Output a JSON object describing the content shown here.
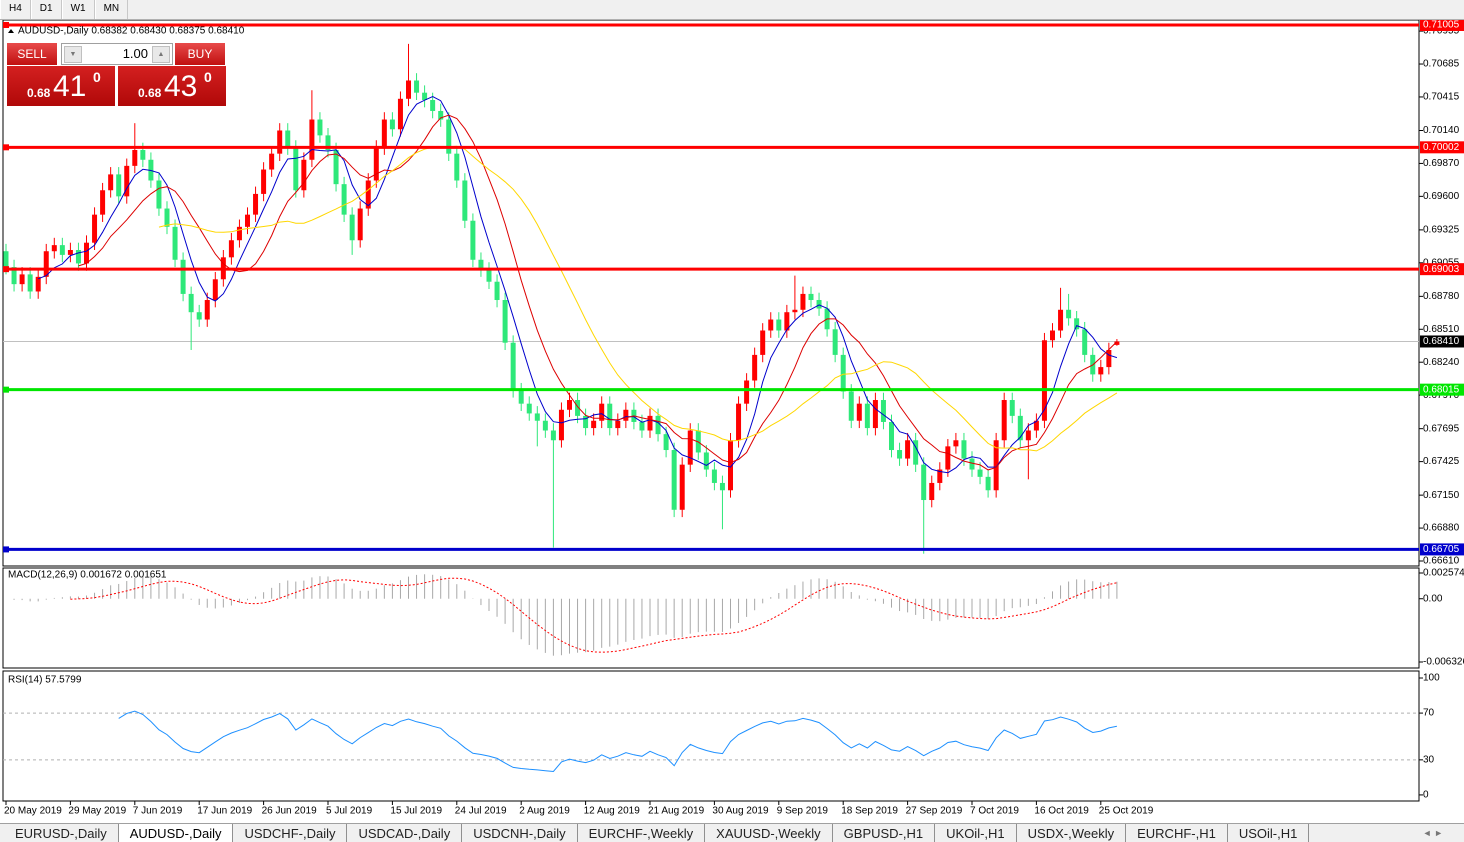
{
  "toolbar": {
    "timeframes": [
      "H4",
      "D1",
      "W1",
      "MN"
    ]
  },
  "trade_panel": {
    "sell_label": "SELL",
    "buy_label": "BUY",
    "lot": "1.00",
    "sell_price": [
      "0.68",
      "41",
      "0"
    ],
    "buy_price": [
      "0.68",
      "43",
      "0"
    ]
  },
  "chart_data": {
    "type": "candlestick",
    "title": "AUDUSD-,Daily  0.68382 0.68430 0.68375 0.68410",
    "categories": [
      "20 May 2019",
      null,
      null,
      null,
      null,
      null,
      null,
      null,
      "29 May 2019",
      null,
      null,
      null,
      null,
      null,
      null,
      null,
      "7 Jun 2019",
      null,
      null,
      null,
      null,
      null,
      null,
      null,
      "17 Jun 2019",
      null,
      null,
      null,
      null,
      null,
      null,
      null,
      "26 Jun 2019",
      null,
      null,
      null,
      null,
      null,
      null,
      null,
      "5 Jul 2019",
      null,
      null,
      null,
      null,
      null,
      null,
      null,
      "15 Jul 2019",
      null,
      null,
      null,
      null,
      null,
      null,
      null,
      "24 Jul 2019",
      null,
      null,
      null,
      null,
      null,
      null,
      null,
      "2 Aug 2019",
      null,
      null,
      null,
      null,
      null,
      null,
      null,
      "12 Aug 2019",
      null,
      null,
      null,
      null,
      null,
      null,
      null,
      "21 Aug 2019",
      null,
      null,
      null,
      null,
      null,
      null,
      null,
      "30 Aug 2019",
      null,
      null,
      null,
      null,
      null,
      null,
      null,
      "9 Sep 2019",
      null,
      null,
      null,
      null,
      null,
      null,
      null,
      "18 Sep 2019",
      null,
      null,
      null,
      null,
      null,
      null,
      null,
      "27 Sep 2019",
      null,
      null,
      null,
      null,
      null,
      null,
      null,
      "7 Oct 2019",
      null,
      null,
      null,
      null,
      null,
      null,
      null,
      "16 Oct 2019",
      null,
      null,
      null,
      null,
      null,
      null,
      null,
      "25 Oct 2019",
      null,
      null
    ],
    "open": [
      0.6915,
      0.6902,
      0.6888,
      0.6896,
      0.6882,
      0.6894,
      0.6915,
      0.692,
      0.6912,
      0.6916,
      0.6905,
      0.6922,
      0.6945,
      0.6965,
      0.6978,
      0.696,
      0.6985,
      0.6998,
      0.699,
      0.6973,
      0.695,
      0.6935,
      0.6908,
      0.688,
      0.6865,
      0.6859,
      0.6875,
      0.6892,
      0.691,
      0.6924,
      0.6935,
      0.6945,
      0.6962,
      0.6982,
      0.6995,
      0.7014,
      0.7,
      0.6965,
      0.699,
      0.7023,
      0.701,
      0.6998,
      0.697,
      0.6945,
      0.6924,
      0.695,
      0.6973,
      0.7,
      0.7023,
      0.7015,
      0.704,
      0.7055,
      0.7045,
      0.7039,
      0.703,
      0.7023,
      0.6995,
      0.6973,
      0.694,
      0.6908,
      0.69,
      0.689,
      0.6875,
      0.684,
      0.6801,
      0.679,
      0.6782,
      0.6776,
      0.6768,
      0.676,
      0.6785,
      0.6793,
      0.678,
      0.677,
      0.6776,
      0.679,
      0.677,
      0.6776,
      0.6785,
      0.6775,
      0.6768,
      0.678,
      0.6765,
      0.6752,
      0.6703,
      0.674,
      0.6768,
      0.675,
      0.6736,
      0.6725,
      0.6719,
      0.676,
      0.679,
      0.6809,
      0.683,
      0.685,
      0.6859,
      0.685,
      0.6865,
      0.6867,
      0.688,
      0.6875,
      0.6868,
      0.6851,
      0.683,
      0.68,
      0.6776,
      0.679,
      0.677,
      0.6793,
      0.6775,
      0.6752,
      0.6745,
      0.676,
      0.674,
      0.6711,
      0.6725,
      0.6736,
      0.6755,
      0.676,
      0.6745,
      0.6736,
      0.673,
      0.6719,
      0.676,
      0.6793,
      0.678,
      0.676,
      0.6768,
      0.6776,
      0.6842,
      0.685,
      0.6867,
      0.686,
      0.6851,
      0.683,
      0.6814,
      0.682,
      0.68382
    ],
    "high": [
      0.6921,
      0.6908,
      0.6902,
      0.6902,
      0.69,
      0.6921,
      0.6926,
      0.6926,
      0.6922,
      0.6922,
      0.6928,
      0.6951,
      0.6971,
      0.6984,
      0.6984,
      0.6991,
      0.702,
      0.7004,
      0.6996,
      0.6979,
      0.6956,
      0.6941,
      0.6914,
      0.6886,
      0.6871,
      0.6881,
      0.6898,
      0.6916,
      0.693,
      0.6941,
      0.6951,
      0.6968,
      0.6988,
      0.7001,
      0.702,
      0.702,
      0.7006,
      0.6996,
      0.7047,
      0.7029,
      0.7016,
      0.7004,
      0.6976,
      0.6951,
      0.6956,
      0.6979,
      0.7006,
      0.7029,
      0.7029,
      0.7046,
      0.7085,
      0.7061,
      0.7051,
      0.7045,
      0.7036,
      0.7029,
      0.7001,
      0.6979,
      0.6946,
      0.6914,
      0.6906,
      0.6896,
      0.6881,
      0.6846,
      0.6807,
      0.6796,
      0.6788,
      0.6782,
      0.6774,
      0.6791,
      0.6799,
      0.6799,
      0.6786,
      0.6782,
      0.6796,
      0.6796,
      0.6782,
      0.6791,
      0.6791,
      0.6781,
      0.6786,
      0.6786,
      0.6771,
      0.6758,
      0.6746,
      0.6774,
      0.6774,
      0.6756,
      0.6742,
      0.6731,
      0.6766,
      0.6796,
      0.6815,
      0.6836,
      0.6856,
      0.6865,
      0.6865,
      0.6871,
      0.6895,
      0.6886,
      0.6886,
      0.6881,
      0.6874,
      0.6857,
      0.6836,
      0.6806,
      0.6796,
      0.6796,
      0.6799,
      0.6799,
      0.6781,
      0.6758,
      0.6766,
      0.6766,
      0.6746,
      0.6731,
      0.6742,
      0.6761,
      0.6766,
      0.6766,
      0.6751,
      0.6742,
      0.6736,
      0.6766,
      0.6799,
      0.6799,
      0.6786,
      0.6774,
      0.6782,
      0.6848,
      0.6856,
      0.6885,
      0.688,
      0.6866,
      0.6857,
      0.6836,
      0.6826,
      0.684,
      0.6843
    ],
    "low": [
      0.6896,
      0.6882,
      0.6882,
      0.6876,
      0.6876,
      0.6888,
      0.6909,
      0.6906,
      0.6906,
      0.6899,
      0.6899,
      0.6916,
      0.6939,
      0.6959,
      0.6954,
      0.6954,
      0.6979,
      0.6984,
      0.6967,
      0.6944,
      0.6929,
      0.6902,
      0.6874,
      0.6834,
      0.6853,
      0.6853,
      0.6869,
      0.6886,
      0.6904,
      0.6918,
      0.6929,
      0.6939,
      0.6956,
      0.6976,
      0.6989,
      0.6994,
      0.6959,
      0.6959,
      0.6984,
      0.7004,
      0.6992,
      0.6964,
      0.6939,
      0.6912,
      0.6918,
      0.6944,
      0.6967,
      0.6994,
      0.7009,
      0.7009,
      0.7034,
      0.7039,
      0.7033,
      0.7024,
      0.7017,
      0.6989,
      0.6967,
      0.6934,
      0.6902,
      0.6894,
      0.6884,
      0.6869,
      0.6834,
      0.6795,
      0.6784,
      0.6776,
      0.6755,
      0.6762,
      0.6672,
      0.6754,
      0.6779,
      0.6774,
      0.6764,
      0.6764,
      0.677,
      0.6764,
      0.6764,
      0.677,
      0.6769,
      0.6762,
      0.6762,
      0.6759,
      0.6746,
      0.6697,
      0.6697,
      0.6734,
      0.6744,
      0.673,
      0.6719,
      0.6687,
      0.6713,
      0.6754,
      0.6784,
      0.6803,
      0.6824,
      0.6844,
      0.6844,
      0.6844,
      0.6859,
      0.6861,
      0.6869,
      0.6862,
      0.6845,
      0.6824,
      0.6794,
      0.677,
      0.677,
      0.6764,
      0.6764,
      0.6769,
      0.6746,
      0.6739,
      0.6739,
      0.6734,
      0.6667,
      0.6705,
      0.6719,
      0.673,
      0.6749,
      0.6739,
      0.673,
      0.6724,
      0.6713,
      0.6713,
      0.6754,
      0.6774,
      0.6754,
      0.6728,
      0.6762,
      0.677,
      0.6836,
      0.6844,
      0.6854,
      0.6845,
      0.6824,
      0.6808,
      0.6808,
      0.6814,
      0.68375
    ],
    "close": [
      0.6902,
      0.6888,
      0.6896,
      0.6882,
      0.6894,
      0.6915,
      0.692,
      0.6912,
      0.6916,
      0.6905,
      0.6922,
      0.6945,
      0.6965,
      0.6978,
      0.696,
      0.6985,
      0.6998,
      0.699,
      0.6973,
      0.695,
      0.6935,
      0.6908,
      0.688,
      0.6865,
      0.6859,
      0.6875,
      0.6892,
      0.691,
      0.6924,
      0.6935,
      0.6945,
      0.6962,
      0.6982,
      0.6995,
      0.7014,
      0.7,
      0.6965,
      0.699,
      0.7023,
      0.701,
      0.6998,
      0.697,
      0.6945,
      0.6924,
      0.695,
      0.6973,
      0.7,
      0.7023,
      0.7015,
      0.704,
      0.7055,
      0.7045,
      0.7039,
      0.703,
      0.7023,
      0.6995,
      0.6973,
      0.694,
      0.6908,
      0.69,
      0.689,
      0.6875,
      0.684,
      0.6801,
      0.679,
      0.6782,
      0.6776,
      0.6768,
      0.676,
      0.6785,
      0.6793,
      0.678,
      0.677,
      0.6776,
      0.679,
      0.677,
      0.6776,
      0.6785,
      0.6775,
      0.6768,
      0.678,
      0.6765,
      0.6752,
      0.6703,
      0.674,
      0.6768,
      0.675,
      0.6736,
      0.6725,
      0.6719,
      0.676,
      0.679,
      0.6809,
      0.683,
      0.685,
      0.6859,
      0.685,
      0.6865,
      0.6867,
      0.688,
      0.6875,
      0.6868,
      0.6851,
      0.683,
      0.68,
      0.6776,
      0.679,
      0.677,
      0.6793,
      0.6775,
      0.6752,
      0.6745,
      0.676,
      0.674,
      0.6711,
      0.6725,
      0.6736,
      0.6755,
      0.676,
      0.6745,
      0.6736,
      0.673,
      0.6719,
      0.676,
      0.6793,
      0.678,
      0.676,
      0.6768,
      0.6776,
      0.6842,
      0.685,
      0.6867,
      0.686,
      0.6851,
      0.683,
      0.6814,
      0.682,
      0.6834,
      0.6841
    ],
    "up_color": "#ff0000",
    "down_color": "#2ee87a",
    "ma_colors": [
      "#0000cc",
      "#dd0000",
      "#ffd700"
    ],
    "ylim": [
      0.66569,
      0.71046
    ],
    "yticks": [
      0.70955,
      0.70685,
      0.70415,
      {
        "value": 0.7014,
        "label": "0.70140"
      },
      {
        "value": 0.6987,
        "label": "0.69870"
      },
      {
        "value": 0.696,
        "label": "0.69600"
      },
      0.69325,
      0.69055,
      {
        "value": 0.6878,
        "label": "0.68780"
      },
      {
        "value": 0.6851,
        "label": "0.68510"
      },
      {
        "value": 0.6824,
        "label": "0.68240"
      },
      {
        "value": 0.6797,
        "label": "0.67970"
      },
      0.67695,
      0.67425,
      {
        "value": 0.6715,
        "label": "0.67150"
      },
      {
        "value": 0.6688,
        "label": "0.66880"
      },
      {
        "value": 0.6661,
        "label": "0.66610"
      }
    ],
    "levels": [
      {
        "value": 0.71005,
        "color": "#ff0000"
      },
      {
        "value": 0.70002,
        "color": "#ff0000"
      },
      {
        "value": 0.69003,
        "color": "#ff0000"
      },
      {
        "value": 0.68015,
        "color": "#00e600"
      },
      {
        "value": 0.66705,
        "color": "#0000cc"
      }
    ],
    "bid": {
      "value": 0.6841,
      "label": "0.68410"
    }
  },
  "macd": {
    "title": "MACD(12,26,9) 0.001672 0.001651",
    "ylim": [
      -0.006926,
      0.003074
    ],
    "yticks": [
      0.002574,
      {
        "value": 0,
        "label": "0.00"
      },
      -0.006326
    ],
    "histogram_color": "#a8a8a8",
    "signal_color": "#ff0000"
  },
  "rsi": {
    "title": "RSI(14) 57.5799",
    "ylim": [
      -5.2,
      106
    ],
    "yticks": [
      100,
      70,
      30,
      0
    ],
    "levels": [
      70,
      30
    ],
    "color": "#1e90ff"
  },
  "tabs": {
    "items": [
      "EURUSD-,Daily",
      "AUDUSD-,Daily",
      "USDCHF-,Daily",
      "USDCAD-,Daily",
      "USDCNH-,Daily",
      "EURCHF-,Weekly",
      "XAUUSD-,Weekly",
      "GBPUSD-,H1",
      "UKOil-,H1",
      "USDX-,Weekly",
      "EURCHF-,H1",
      "USOil-,H1"
    ],
    "active": 1
  }
}
